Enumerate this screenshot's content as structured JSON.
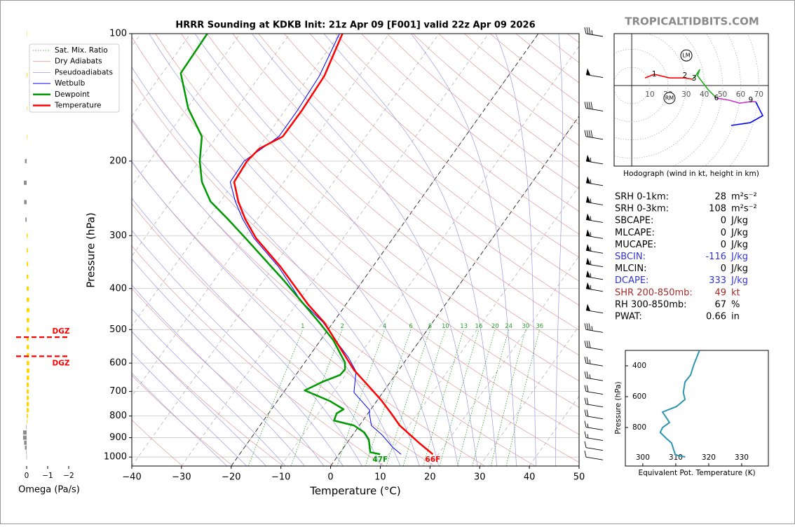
{
  "watermark": "TROPICALTIDBITS.COM",
  "stats": [
    {
      "label": "SRH 0-1km:",
      "value": 28,
      "unit": "m²s⁻²",
      "color": "#000000"
    },
    {
      "label": "SRH 0-3km:",
      "value": 108,
      "unit": "m²s⁻²",
      "color": "#000000"
    },
    {
      "label": "SBCAPE:",
      "value": 0,
      "unit": "J/kg",
      "color": "#000000"
    },
    {
      "label": "MLCAPE:",
      "value": 0,
      "unit": "J/kg",
      "color": "#000000"
    },
    {
      "label": "MUCAPE:",
      "value": 0,
      "unit": "J/kg",
      "color": "#000000"
    },
    {
      "label": "SBCIN:",
      "value": -116,
      "unit": "J/kg",
      "color": "#3333cc"
    },
    {
      "label": "MLCIN:",
      "value": 0,
      "unit": "J/kg",
      "color": "#000000"
    },
    {
      "label": "DCAPE:",
      "value": 333,
      "unit": "J/kg",
      "color": "#3333cc"
    },
    {
      "label": "SHR 200-850mb:",
      "value": 49,
      "unit": "kt",
      "color": "#a52a2a"
    },
    {
      "label": "RH 300-850mb:",
      "value": 67,
      "unit": "%",
      "color": "#000000"
    },
    {
      "label": "PWAT:",
      "value": 0.66,
      "unit": "in",
      "color": "#000000"
    }
  ],
  "chart_data": [
    {
      "type": "skewt",
      "title": "HRRR Sounding at KDKB Init: 21z Apr 09 [F001] valid 22z Apr 09 2026",
      "xlabel": "Temperature (°C)",
      "ylabel": "Pressure (hPa)",
      "xlim": [
        -40,
        50
      ],
      "xticks": [
        {
          "value": -40,
          "label": "−40"
        },
        {
          "value": -30,
          "label": "−30"
        },
        {
          "value": -20,
          "label": "−20"
        },
        {
          "value": -10,
          "label": "−10"
        },
        0,
        10,
        20,
        30,
        40,
        50
      ],
      "ylim": [
        1050,
        100
      ],
      "log_y": true,
      "yticks": [
        100,
        200,
        300,
        400,
        500,
        600,
        700,
        800,
        900,
        1000
      ],
      "grid": true,
      "legend": "upper left",
      "isotherm_highlights": [
        -20,
        0
      ],
      "reference_lines": [
        {
          "name": "Sat. Mix. Ratio",
          "color": "#2ca02c",
          "style": "dotted",
          "values": [
            1,
            2,
            4,
            6,
            8,
            10,
            13,
            16,
            20,
            24,
            30,
            36
          ]
        },
        {
          "name": "Dry Adiabats",
          "color": "#e29a9a",
          "style": "solid"
        },
        {
          "name": "Pseudoadiabats",
          "color": "#9a9ae2",
          "style": "solid"
        }
      ],
      "series": [
        {
          "name": "Wetbulb",
          "color": "#0000ff",
          "linewidth": 1,
          "pressure": [
            985,
            948,
            885,
            842,
            789,
            775,
            704,
            628,
            582,
            529,
            481,
            429,
            355,
            304,
            274,
            249,
            224,
            200,
            175,
            152,
            126,
            100
          ],
          "values": [
            12.5,
            9.8,
            5.8,
            2.4,
            0.3,
            -0.1,
            -5.8,
            -8.4,
            -11.9,
            -17.1,
            -22.0,
            -29.4,
            -39.0,
            -48.0,
            -53.0,
            -57.0,
            -60.8,
            -61.0,
            -57.5,
            -57.5,
            -58.0,
            -60.0
          ]
        },
        {
          "name": "Dewpoint",
          "color": "#009900",
          "linewidth": 2.5,
          "surface_label": "47F",
          "pressure": [
            985,
            974,
            909,
            875,
            842,
            820,
            789,
            771,
            737,
            696,
            665,
            640,
            621,
            598,
            529,
            481,
            383,
            304,
            274,
            249,
            224,
            200,
            175,
            150,
            124,
            100
          ],
          "values": [
            8.3,
            6.0,
            3.9,
            2.0,
            -1.1,
            -5.8,
            -6.3,
            -5.5,
            -9.5,
            -16.0,
            -13.7,
            -11.1,
            -10.9,
            -11.9,
            -17.5,
            -22.8,
            -35.9,
            -49.7,
            -56.0,
            -62.0,
            -66.5,
            -69.9,
            -73.0,
            -79.8,
            -86.3,
            -86.6
          ]
        },
        {
          "name": "Temperature",
          "color": "#ff0000",
          "linewidth": 2.5,
          "surface_label": "66F",
          "pressure": [
            985,
            926,
            842,
            789,
            737,
            691,
            623,
            529,
            481,
            437,
            355,
            304,
            274,
            249,
            224,
            200,
            187,
            175,
            152,
            126,
            100
          ],
          "values": [
            18.9,
            14.5,
            8.1,
            4.7,
            1.0,
            -2.8,
            -9.0,
            -17.1,
            -21.8,
            -27.5,
            -38.6,
            -47.6,
            -52.5,
            -56.4,
            -60.0,
            -60.4,
            -59.7,
            -56.7,
            -56.6,
            -57.0,
            -59.4
          ]
        }
      ],
      "wind_barbs": {
        "pressures": [
          100,
          125,
          150,
          175,
          200,
          225,
          250,
          275,
          300,
          325,
          350,
          375,
          400,
          450,
          500,
          550,
          600,
          650,
          700,
          750,
          800,
          850,
          900,
          950,
          1000
        ],
        "speeds": [
          35,
          50,
          40,
          40,
          55,
          55,
          55,
          55,
          55,
          55,
          55,
          55,
          55,
          50,
          35,
          30,
          25,
          25,
          20,
          20,
          20,
          15,
          15,
          10,
          10
        ]
      }
    },
    {
      "type": "hodograph",
      "caption": "Hodograph (wind in kt, height in km)",
      "xlim": [
        -9.7,
        75.3
      ],
      "ylim": [
        -44.4,
        28.6
      ],
      "rings": [
        10,
        20,
        30,
        40,
        50,
        60,
        70
      ],
      "segments": [
        {
          "color": "#ff0000",
          "u": [
            7.3,
            12.4,
            20.8,
            28.6,
            33.6
          ],
          "v": [
            4.2,
            6.2,
            4.2,
            4.2,
            3.5
          ]
        },
        {
          "color": "#22aa22",
          "u": [
            33.6,
            35.5,
            37.5,
            36.3,
            42.1,
            46.7
          ],
          "v": [
            3.5,
            5.8,
            8.9,
            5.4,
            -2.3,
            -6.9
          ]
        },
        {
          "color": "#cc33cc",
          "u": [
            46.7,
            53.7,
            59.5,
            65.3,
            68.3
          ],
          "v": [
            -6.9,
            -8.1,
            -9.7,
            -8.9,
            -8.9
          ]
        },
        {
          "color": "#0000ff",
          "u": [
            68.3,
            72.2,
            65.3,
            54.8
          ],
          "v": [
            -8.9,
            -16.6,
            -20.5,
            -22.0
          ]
        }
      ],
      "heights": [
        {
          "km": 1,
          "u": 12.4,
          "v": 6.2
        },
        {
          "km": 2,
          "u": 29.3,
          "v": 5.4
        },
        {
          "km": 3,
          "u": 34.4,
          "v": 3.9
        },
        {
          "km": 6,
          "u": 46.7,
          "v": -6.9
        },
        {
          "km": 9,
          "u": 65.6,
          "v": -8.1
        }
      ],
      "storm_motion": [
        {
          "label": "LM",
          "u": 30.1,
          "v": 16.6
        },
        {
          "label": "RM",
          "u": 20.8,
          "v": -6.9
        }
      ]
    },
    {
      "type": "line",
      "xlabel": "Equivalent Pot. Temperature (K)",
      "ylabel": "Pressure (hPa)",
      "xlim": [
        294.7,
        338.1
      ],
      "xticks": [
        300,
        310,
        320,
        330
      ],
      "ylim": [
        1050,
        300
      ],
      "yticks": [
        400,
        600,
        800
      ],
      "series": [
        {
          "color": "#2e95b0",
          "pressure": [
            300,
            391,
            459,
            505,
            573,
            618,
            664,
            700,
            732,
            768,
            800,
            832,
            868,
            900,
            973,
            982,
            991
          ],
          "values": [
            317.2,
            315.5,
            314.5,
            312.8,
            312.3,
            312.8,
            310.2,
            306.0,
            307.0,
            308.1,
            306.0,
            305.3,
            307.0,
            308.7,
            309.8,
            310.6,
            312.9
          ]
        }
      ]
    },
    {
      "type": "omega",
      "xlabel": "Omega (Pa/s)",
      "xlim": [
        0.5,
        -2.4
      ],
      "xticks": [
        0,
        {
          "value": -1,
          "label": "−1"
        },
        {
          "value": -2,
          "label": "−2"
        }
      ],
      "ylim": [
        1050,
        100
      ],
      "colors": {
        "positive": "#8c8c8c",
        "negative": "#ffd700"
      },
      "pressure": [
        100,
        125,
        150,
        175,
        200,
        225,
        250,
        275,
        300,
        325,
        350,
        375,
        400,
        425,
        450,
        475,
        500,
        525,
        550,
        575,
        600,
        625,
        650,
        675,
        700,
        725,
        750,
        775,
        800,
        825,
        850,
        875,
        900,
        925,
        950,
        975,
        1000
      ],
      "values": [
        -0.02,
        -0.03,
        -0.02,
        -0.02,
        0.08,
        0.13,
        0.12,
        0.06,
        -0.05,
        -0.06,
        -0.07,
        -0.08,
        -0.1,
        -0.12,
        -0.13,
        -0.12,
        -0.11,
        -0.1,
        -0.11,
        -0.12,
        -0.12,
        -0.13,
        -0.12,
        -0.1,
        -0.1,
        -0.1,
        -0.11,
        -0.1,
        -0.06,
        -0.03,
        0.02,
        0.17,
        0.17,
        0.12,
        0.08,
        0.02,
        0.01
      ],
      "dgz": {
        "label": "DGZ",
        "color": "#ff0000",
        "pressures": [
          521,
          578
        ]
      }
    }
  ]
}
